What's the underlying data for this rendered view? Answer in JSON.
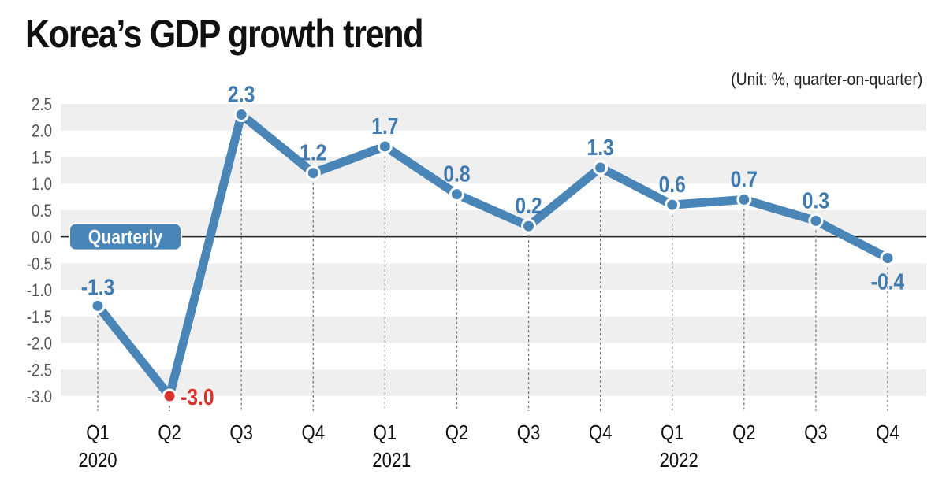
{
  "chart_data": {
    "type": "line",
    "title": "Korea’s GDP growth trend",
    "subtitle": "(Unit: %, quarter-on-quarter)",
    "series_label": "Quarterly",
    "categories": [
      "Q1",
      "Q2",
      "Q3",
      "Q4",
      "Q1",
      "Q2",
      "Q3",
      "Q4",
      "Q1",
      "Q2",
      "Q3",
      "Q4"
    ],
    "year_labels": [
      {
        "index": 0,
        "label": "2020"
      },
      {
        "index": 4,
        "label": "2021"
      },
      {
        "index": 8,
        "label": "2022"
      }
    ],
    "values": [
      -1.3,
      -3.0,
      2.3,
      1.2,
      1.7,
      0.8,
      0.2,
      1.3,
      0.6,
      0.7,
      0.3,
      -0.4
    ],
    "data_labels": [
      "-1.3",
      "-3.0",
      "2.3",
      "1.2",
      "1.7",
      "0.8",
      "0.2",
      "1.3",
      "0.6",
      "0.7",
      "0.3",
      "-0.4"
    ],
    "yticks": [
      "2.5",
      "2.0",
      "1.5",
      "1.0",
      "0.5",
      "0.0",
      "-0.5",
      "-1.0",
      "-1.5",
      "-2.0",
      "-2.5",
      "-3.0"
    ],
    "ylim": [
      -3.0,
      2.5
    ],
    "grid": "alternating horizontal bands",
    "highlight_index": 1,
    "colors": {
      "line": "#4a85b8",
      "highlight": "#d9322b",
      "band": "#efefef",
      "label": "#3f7bb0"
    }
  }
}
